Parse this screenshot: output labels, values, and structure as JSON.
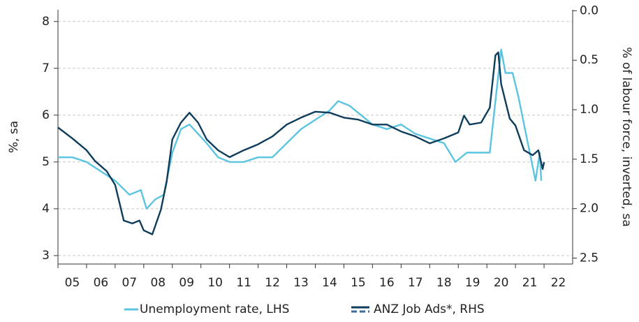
{
  "chart_data": {
    "type": "line",
    "ylabel": "%, sa",
    "y2label": "% of labour force, inverted, sa",
    "xlim": [
      2005,
      2023
    ],
    "xticks": [
      {
        "value": 2005.5,
        "label": "05"
      },
      {
        "value": 2006.5,
        "label": "06"
      },
      {
        "value": 2007.5,
        "label": "07"
      },
      {
        "value": 2008.5,
        "label": "08"
      },
      {
        "value": 2009.5,
        "label": "09"
      },
      {
        "value": 2010.5,
        "label": "10"
      },
      {
        "value": 2011.5,
        "label": "11"
      },
      {
        "value": 2012.5,
        "label": "12"
      },
      {
        "value": 2013.5,
        "label": "13"
      },
      {
        "value": 2014.5,
        "label": "14"
      },
      {
        "value": 2015.5,
        "label": "15"
      },
      {
        "value": 2016.5,
        "label": "16"
      },
      {
        "value": 2017.5,
        "label": "17"
      },
      {
        "value": 2018.5,
        "label": "18"
      },
      {
        "value": 2019.5,
        "label": "19"
      },
      {
        "value": 2020.5,
        "label": "20"
      },
      {
        "value": 2021.5,
        "label": "21"
      },
      {
        "value": 2022.5,
        "label": "22"
      }
    ],
    "ylim": [
      2.82,
      8.25
    ],
    "yticks": [
      3,
      4,
      5,
      6,
      7,
      8
    ],
    "y2lim": [
      -0.01,
      2.56
    ],
    "y2inverted": true,
    "y2ticks": [
      {
        "value": 0,
        "label": "0.0"
      },
      0.5,
      {
        "value": 1,
        "label": "1.0"
      },
      1.5,
      {
        "value": 2,
        "label": "2.0"
      },
      2.5
    ],
    "grid": true,
    "legend": "bottom",
    "series": [
      {
        "name": "Unemployment rate, LHS",
        "color": "#5bc4e0",
        "x": [
          2005.0,
          2005.5,
          2006.0,
          2006.5,
          2007.0,
          2007.5,
          2007.9,
          2008.1,
          2008.4,
          2008.7,
          2009.0,
          2009.3,
          2009.6,
          2009.9,
          2010.2,
          2010.6,
          2011.0,
          2011.5,
          2012.0,
          2012.5,
          2013.0,
          2013.5,
          2014.0,
          2014.5,
          2014.8,
          2015.2,
          2015.6,
          2016.0,
          2016.5,
          2017.0,
          2017.5,
          2018.0,
          2018.5,
          2018.9,
          2019.3,
          2019.8,
          2020.1,
          2020.3,
          2020.5,
          2020.65,
          2020.9,
          2021.1,
          2021.3,
          2021.5,
          2021.7,
          2021.85,
          2021.9
        ],
        "values": [
          5.1,
          5.1,
          5.0,
          4.8,
          4.6,
          4.3,
          4.4,
          4.0,
          4.2,
          4.3,
          5.2,
          5.7,
          5.8,
          5.6,
          5.4,
          5.1,
          5.0,
          5.0,
          5.1,
          5.1,
          5.4,
          5.7,
          5.9,
          6.1,
          6.3,
          6.2,
          6.0,
          5.8,
          5.7,
          5.8,
          5.6,
          5.5,
          5.4,
          5.0,
          5.2,
          5.2,
          5.2,
          6.3,
          7.4,
          6.9,
          6.9,
          6.4,
          5.8,
          5.2,
          4.6,
          5.2,
          4.6
        ]
      },
      {
        "name": "ANZ Job Ads*, RHS",
        "color": "#0e3d5c",
        "axis": "y2",
        "x": [
          2005.0,
          2005.5,
          2006.0,
          2006.3,
          2006.7,
          2007.0,
          2007.3,
          2007.6,
          2007.85,
          2008.0,
          2008.3,
          2008.6,
          2008.8,
          2009.0,
          2009.3,
          2009.6,
          2009.9,
          2010.2,
          2010.6,
          2011.0,
          2011.5,
          2012.0,
          2012.5,
          2013.0,
          2013.5,
          2014.0,
          2014.5,
          2015.0,
          2015.5,
          2016.0,
          2016.5,
          2017.0,
          2017.5,
          2018.0,
          2018.5,
          2019.0,
          2019.2,
          2019.4,
          2019.8,
          2020.1,
          2020.3,
          2020.4,
          2020.5,
          2020.8,
          2021.0,
          2021.3,
          2021.6,
          2021.8,
          2021.95,
          2022.0
        ],
        "values": [
          1.18,
          1.29,
          1.41,
          1.52,
          1.62,
          1.76,
          2.12,
          2.15,
          2.12,
          2.22,
          2.26,
          2.01,
          1.73,
          1.3,
          1.13,
          1.03,
          1.13,
          1.3,
          1.41,
          1.48,
          1.41,
          1.35,
          1.27,
          1.15,
          1.08,
          1.02,
          1.03,
          1.08,
          1.1,
          1.15,
          1.15,
          1.22,
          1.27,
          1.34,
          1.29,
          1.23,
          1.06,
          1.15,
          1.13,
          0.98,
          0.45,
          0.42,
          0.74,
          1.09,
          1.16,
          1.41,
          1.46,
          1.41,
          1.6,
          1.53
        ]
      }
    ]
  }
}
